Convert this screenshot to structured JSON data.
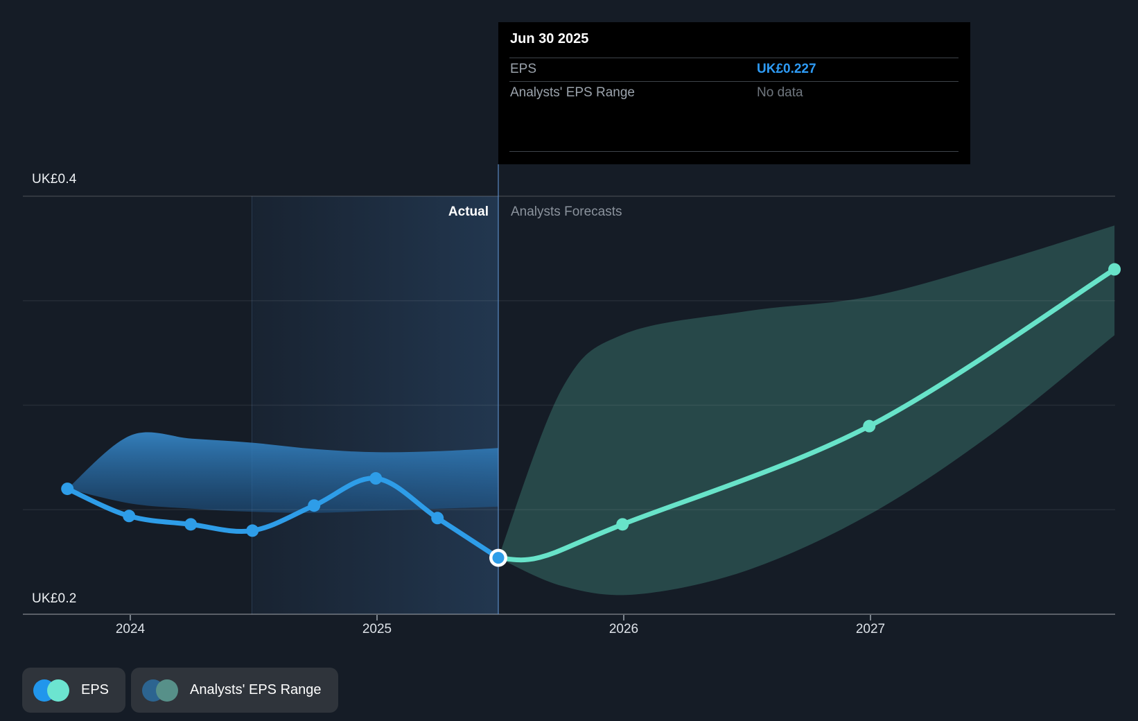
{
  "chart_data": {
    "type": "line",
    "unit": "UK£",
    "y_axis": {
      "min": 0.2,
      "max": 0.4,
      "tick_step": 0.05,
      "ticks": [
        0.4,
        0.35,
        0.3,
        0.25,
        0.2
      ],
      "top_label": "UK£0.4",
      "bottom_label": "UK£0.2"
    },
    "x_axis": {
      "ticks": [
        {
          "t": 2024,
          "label": "2024"
        },
        {
          "t": 2025,
          "label": "2025"
        },
        {
          "t": 2026,
          "label": "2026"
        },
        {
          "t": 2027,
          "label": "2027"
        }
      ]
    },
    "divider": {
      "t": 2025.4916,
      "date": "Jun 30 2025",
      "actual_label": "Actual",
      "forecast_label": "Analysts Forecasts",
      "highlight_years_before": 1
    },
    "series": [
      {
        "name": "EPS",
        "role": "actual",
        "color": "#2e9de8",
        "points": [
          {
            "date": "Sep 30 2023",
            "t": 2023.745,
            "value": 0.26
          },
          {
            "date": "Dec 31 2023",
            "t": 2023.995,
            "value": 0.247
          },
          {
            "date": "Mar 31 2024",
            "t": 2024.245,
            "value": 0.243
          },
          {
            "date": "Jun 30 2024",
            "t": 2024.495,
            "value": 0.24
          },
          {
            "date": "Sep 30 2024",
            "t": 2024.745,
            "value": 0.252
          },
          {
            "date": "Dec 31 2024",
            "t": 2024.995,
            "value": 0.265
          },
          {
            "date": "Mar 31 2025",
            "t": 2025.245,
            "value": 0.246
          },
          {
            "date": "Jun 30 2025",
            "t": 2025.4916,
            "value": 0.227,
            "endpoint": true
          }
        ]
      },
      {
        "name": "EPS forecast",
        "role": "forecast",
        "color": "#68e3c9",
        "points": [
          {
            "date": "Jun 30 2025",
            "t": 2025.4916,
            "value": 0.227,
            "helper": true
          },
          {
            "t": 2025.66,
            "value": 0.2272,
            "helper": true
          },
          {
            "date": "Dec 31 2025",
            "t": 2025.995,
            "value": 0.243
          },
          {
            "date": "Dec 31 2026",
            "t": 2026.995,
            "value": 0.29
          },
          {
            "date": "Dec 31 2027",
            "t": 2027.989,
            "value": 0.365
          }
        ]
      }
    ],
    "ranges": [
      {
        "name": "Actual EPS Range",
        "role": "actual",
        "upper": [
          [
            2023.745,
            0.26
          ],
          [
            2024.0,
            0.2855
          ],
          [
            2024.25,
            0.284
          ],
          [
            2024.5,
            0.282
          ],
          [
            2024.75,
            0.279
          ],
          [
            2025.0,
            0.2775
          ],
          [
            2025.25,
            0.278
          ],
          [
            2025.4916,
            0.2795
          ]
        ],
        "lower": [
          [
            2023.745,
            0.26
          ],
          [
            2024.0,
            0.253
          ],
          [
            2024.25,
            0.2505
          ],
          [
            2024.5,
            0.249
          ],
          [
            2024.75,
            0.2485
          ],
          [
            2025.0,
            0.2495
          ],
          [
            2025.25,
            0.2505
          ],
          [
            2025.4916,
            0.2515
          ]
        ]
      },
      {
        "name": "Analysts' EPS Range",
        "role": "forecast",
        "upper": [
          [
            2025.4916,
            0.227
          ],
          [
            2025.75,
            0.308
          ],
          [
            2026.0,
            0.334
          ],
          [
            2026.5,
            0.345
          ],
          [
            2027.0,
            0.352
          ],
          [
            2027.5,
            0.368
          ],
          [
            2027.989,
            0.386
          ]
        ],
        "lower": [
          [
            2025.4916,
            0.227
          ],
          [
            2025.75,
            0.2135
          ],
          [
            2026.05,
            0.2095
          ],
          [
            2026.5,
            0.221
          ],
          [
            2027.0,
            0.248
          ],
          [
            2027.5,
            0.287
          ],
          [
            2027.989,
            0.3335
          ]
        ]
      }
    ]
  },
  "tooltip": {
    "title": "Jun 30 2025",
    "rows": [
      {
        "label": "EPS",
        "value": "UK£0.227",
        "value_color": "#2e9bf5"
      },
      {
        "label": "Analysts' EPS Range",
        "value": "No data",
        "value_color": "#70777f"
      }
    ]
  },
  "legend": {
    "items": [
      {
        "label": "EPS",
        "dot_colors": [
          "#2196ec",
          "#6ce4d0"
        ]
      },
      {
        "label": "Analysts' EPS Range",
        "dot_colors": [
          "#2c6490",
          "#579089"
        ]
      }
    ]
  },
  "colors": {
    "background": "#151c26",
    "tooltip_bg": "#000000",
    "actual_line": "#2e9de8",
    "forecast_line": "#68e3c9",
    "forecast_band": "rgba(86,186,166,0.28)",
    "divider": "rgba(96,148,210,0.55)"
  }
}
